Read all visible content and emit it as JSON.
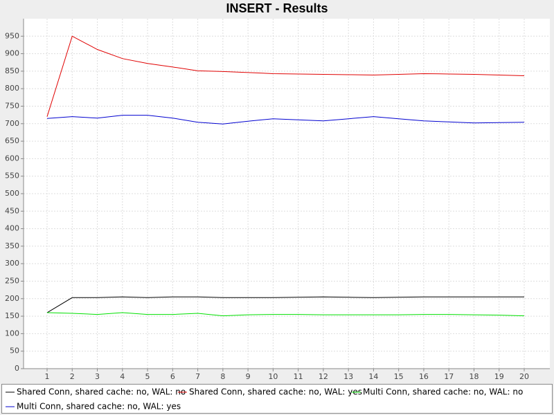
{
  "chart_data": {
    "type": "line",
    "title": "INSERT - Results",
    "categories": [
      "1",
      "2",
      "3",
      "4",
      "5",
      "6",
      "7",
      "8",
      "9",
      "10",
      "11",
      "12",
      "13",
      "14",
      "15",
      "16",
      "17",
      "18",
      "19",
      "20"
    ],
    "series": [
      {
        "name": "Shared Conn, shared cache: no, WAL: no",
        "color": "#000000",
        "values": [
          160,
          203,
          203,
          205,
          203,
          205,
          205,
          203,
          203,
          203,
          204,
          205,
          204,
          203,
          204,
          205,
          205,
          205,
          205,
          205
        ]
      },
      {
        "name": "Shared Conn, shared cache: no, WAL: yes",
        "color": "#e00000",
        "values": [
          720,
          950,
          912,
          886,
          872,
          862,
          851,
          849,
          846,
          843,
          842,
          841,
          840,
          839,
          841,
          843,
          842,
          841,
          839,
          837
        ]
      },
      {
        "name": "Multi Conn, shared cache: no, WAL: no",
        "color": "#00e000",
        "values": [
          160,
          158,
          155,
          160,
          155,
          155,
          158,
          151,
          154,
          155,
          155,
          154,
          154,
          154,
          154,
          155,
          155,
          154,
          153,
          151
        ]
      },
      {
        "name": "Multi Conn, shared cache: no, WAL: yes",
        "color": "#0000d0",
        "values": [
          715,
          720,
          716,
          724,
          724,
          716,
          704,
          699,
          707,
          714,
          711,
          708,
          714,
          720,
          714,
          708,
          705,
          702,
          703,
          704
        ]
      }
    ],
    "ylim": [
      0,
      1000
    ],
    "yticks": [
      0,
      50,
      100,
      150,
      200,
      250,
      300,
      350,
      400,
      450,
      500,
      550,
      600,
      650,
      700,
      750,
      800,
      850,
      900,
      950
    ],
    "grid": true
  }
}
